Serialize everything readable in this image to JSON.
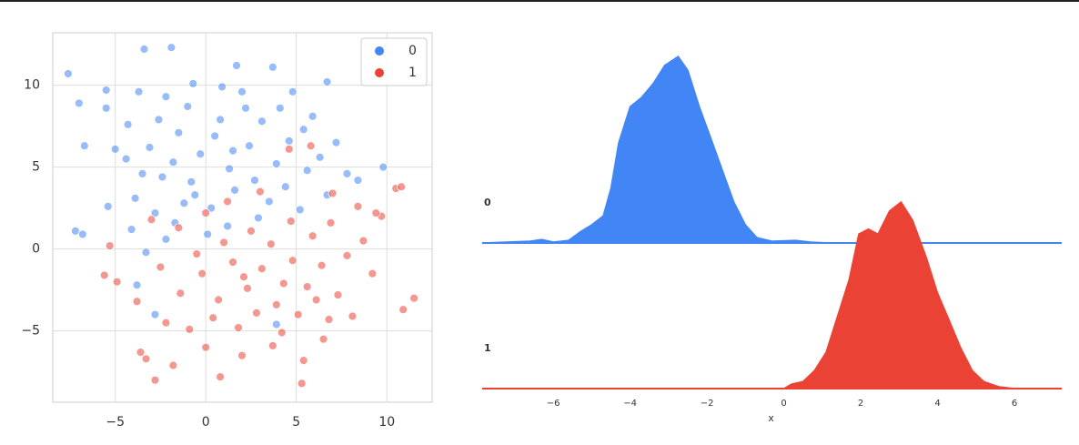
{
  "chart_data": [
    {
      "type": "scatter",
      "xlim": [
        -8.45,
        12.5
      ],
      "ylim": [
        -9.35,
        13.2
      ],
      "xticks": [
        {
          "value": -5,
          "label": "−5"
        },
        0,
        5,
        10
      ],
      "yticks": [
        {
          "value": -5,
          "label": "−5"
        },
        0,
        5,
        10
      ],
      "grid": true,
      "legend": "upper right",
      "series": [
        {
          "name": "0",
          "color": "#4285f4",
          "x": [
            -7.6,
            -3.4,
            -1.9,
            -7,
            -6.7,
            -7.2,
            -6.8,
            9.8,
            6.7,
            1.7,
            -5.5,
            -5.4,
            -5.5,
            -4.3,
            -3.7,
            -2.2,
            -1,
            -0.7,
            0.9,
            2,
            3.7,
            4.8,
            5.4,
            7.2,
            7.8,
            8.4,
            -4.4,
            -3.1,
            -2.4,
            -1.5,
            -0.3,
            0.5,
            1.3,
            2.4,
            3.1,
            3.9,
            4.6,
            5.6,
            6.3,
            -3.9,
            -2.8,
            -1.7,
            -0.6,
            0.3,
            1.6,
            2.7,
            3.5,
            4.4,
            5.2,
            -4.1,
            -3.3,
            -2.2,
            -1.2,
            0.1,
            1.2,
            2.9,
            -3.8,
            -2.8,
            3.9,
            -5,
            -3.5,
            -0.8,
            0.8,
            2.2,
            -1.8,
            6.7,
            4.1,
            -2.6,
            1.5,
            5.9
          ],
          "values": [
            10.7,
            12.2,
            12.3,
            8.9,
            6.3,
            1.1,
            0.9,
            5,
            10.2,
            11.2,
            9.7,
            2.6,
            8.6,
            7.6,
            9.6,
            9.3,
            8.7,
            10.1,
            9.9,
            9.6,
            11.1,
            9.6,
            7.3,
            6.5,
            4.6,
            4.2,
            5.5,
            6.2,
            4.4,
            7.1,
            5.8,
            6.9,
            4.9,
            6.3,
            7.8,
            5.2,
            6.6,
            4.8,
            5.6,
            3.1,
            2.2,
            1.6,
            3.3,
            2.5,
            3.6,
            4.2,
            2.9,
            3.8,
            2.4,
            1.2,
            -0.2,
            0.6,
            2.8,
            0.9,
            1.4,
            1.9,
            -2.2,
            -4,
            -4.6,
            6.1,
            4.6,
            4.1,
            7.9,
            8.6,
            5.3,
            3.3,
            8.6,
            7.9,
            6,
            8.1
          ]
        },
        {
          "name": "1",
          "color": "#ea4335",
          "x": [
            11.5,
            10.9,
            10.5,
            10.8,
            9.7,
            -5.6,
            -5.3,
            -2.8,
            0.8,
            5.3,
            -3.6,
            9.2,
            -3.3,
            -1.8,
            0,
            2,
            3.7,
            5.4,
            6.5,
            8.1,
            8.7,
            9.4,
            7,
            5.8,
            4.6,
            -4.9,
            -3.8,
            -2.5,
            -1.4,
            -0.2,
            0.7,
            1.5,
            2.3,
            3.1,
            3.9,
            4.8,
            5.6,
            6.4,
            7.3,
            -2.2,
            -0.9,
            0.4,
            1.8,
            2.8,
            4.2,
            5.1,
            6.8,
            -1.5,
            0,
            1,
            2.5,
            3.6,
            4.7,
            5.9,
            6.9,
            7.8,
            1.2,
            3,
            -0.5,
            2.1,
            4.3,
            6.1,
            -3,
            8.4
          ],
          "values": [
            -3,
            -3.7,
            3.7,
            3.8,
            2,
            -1.6,
            0.2,
            -8,
            -7.8,
            -8.2,
            -6.3,
            -1.5,
            -6.7,
            -7.1,
            -6,
            -6.5,
            -5.9,
            -6.8,
            -5.5,
            -4.1,
            0.5,
            2.2,
            3.4,
            6.3,
            6.1,
            -2,
            -3.2,
            -1.1,
            -2.7,
            -1.5,
            -3.1,
            -0.8,
            -2.4,
            -1.2,
            -3.4,
            -0.7,
            -2.3,
            -1,
            -2.8,
            -4.5,
            -4.9,
            -4.2,
            -4.8,
            -3.9,
            -5.1,
            -4,
            -4.3,
            1.3,
            2.2,
            0.4,
            1.1,
            0.3,
            1.7,
            0.8,
            1.6,
            -0.4,
            2.9,
            3.5,
            -0.3,
            -1.7,
            -2.1,
            -3.1,
            1.8,
            2.6
          ]
        }
      ]
    },
    {
      "type": "ridgeline",
      "xlabel": "x",
      "xlim": [
        -7.85,
        7.23
      ],
      "ylim": [
        0,
        0.42
      ],
      "xticks": [
        {
          "value": -6,
          "label": "−6"
        },
        {
          "value": -4,
          "label": "−4"
        },
        {
          "value": -2,
          "label": "−2"
        },
        0,
        2,
        4,
        6
      ],
      "series": [
        {
          "name": "0",
          "color": "#4285f4",
          "x": [
            -7.85,
            -6.6,
            -6.3,
            -6,
            -5.6,
            -5.3,
            -5,
            -4.7,
            -4.5,
            -4.3,
            -4,
            -3.7,
            -3.4,
            -3.1,
            -2.75,
            -2.5,
            -2.2,
            -1.9,
            -1.6,
            -1.3,
            -1,
            -0.7,
            -0.3,
            0.3,
            0.7,
            1.2,
            7.23
          ],
          "values": [
            0,
            0.004,
            0.008,
            0.002,
            0.006,
            0.025,
            0.041,
            0.061,
            0.123,
            0.225,
            0.307,
            0.328,
            0.359,
            0.4,
            0.42,
            0.389,
            0.307,
            0.236,
            0.164,
            0.092,
            0.041,
            0.012,
            0.004,
            0.006,
            0.002,
            0,
            0
          ]
        },
        {
          "name": "1",
          "color": "#ea4335",
          "x": [
            -7.85,
            0,
            0.2,
            0.5,
            0.8,
            1.1,
            1.4,
            1.7,
            1.95,
            2.2,
            2.45,
            2.75,
            3.05,
            3.35,
            3.7,
            4,
            4.3,
            4.6,
            4.9,
            5.2,
            5.6,
            6,
            7.23
          ],
          "values": [
            0,
            0,
            0.01,
            0.016,
            0.041,
            0.082,
            0.164,
            0.246,
            0.348,
            0.359,
            0.348,
            0.4,
            0.42,
            0.379,
            0.297,
            0.215,
            0.154,
            0.092,
            0.041,
            0.016,
            0.004,
            0,
            0
          ]
        }
      ]
    }
  ]
}
